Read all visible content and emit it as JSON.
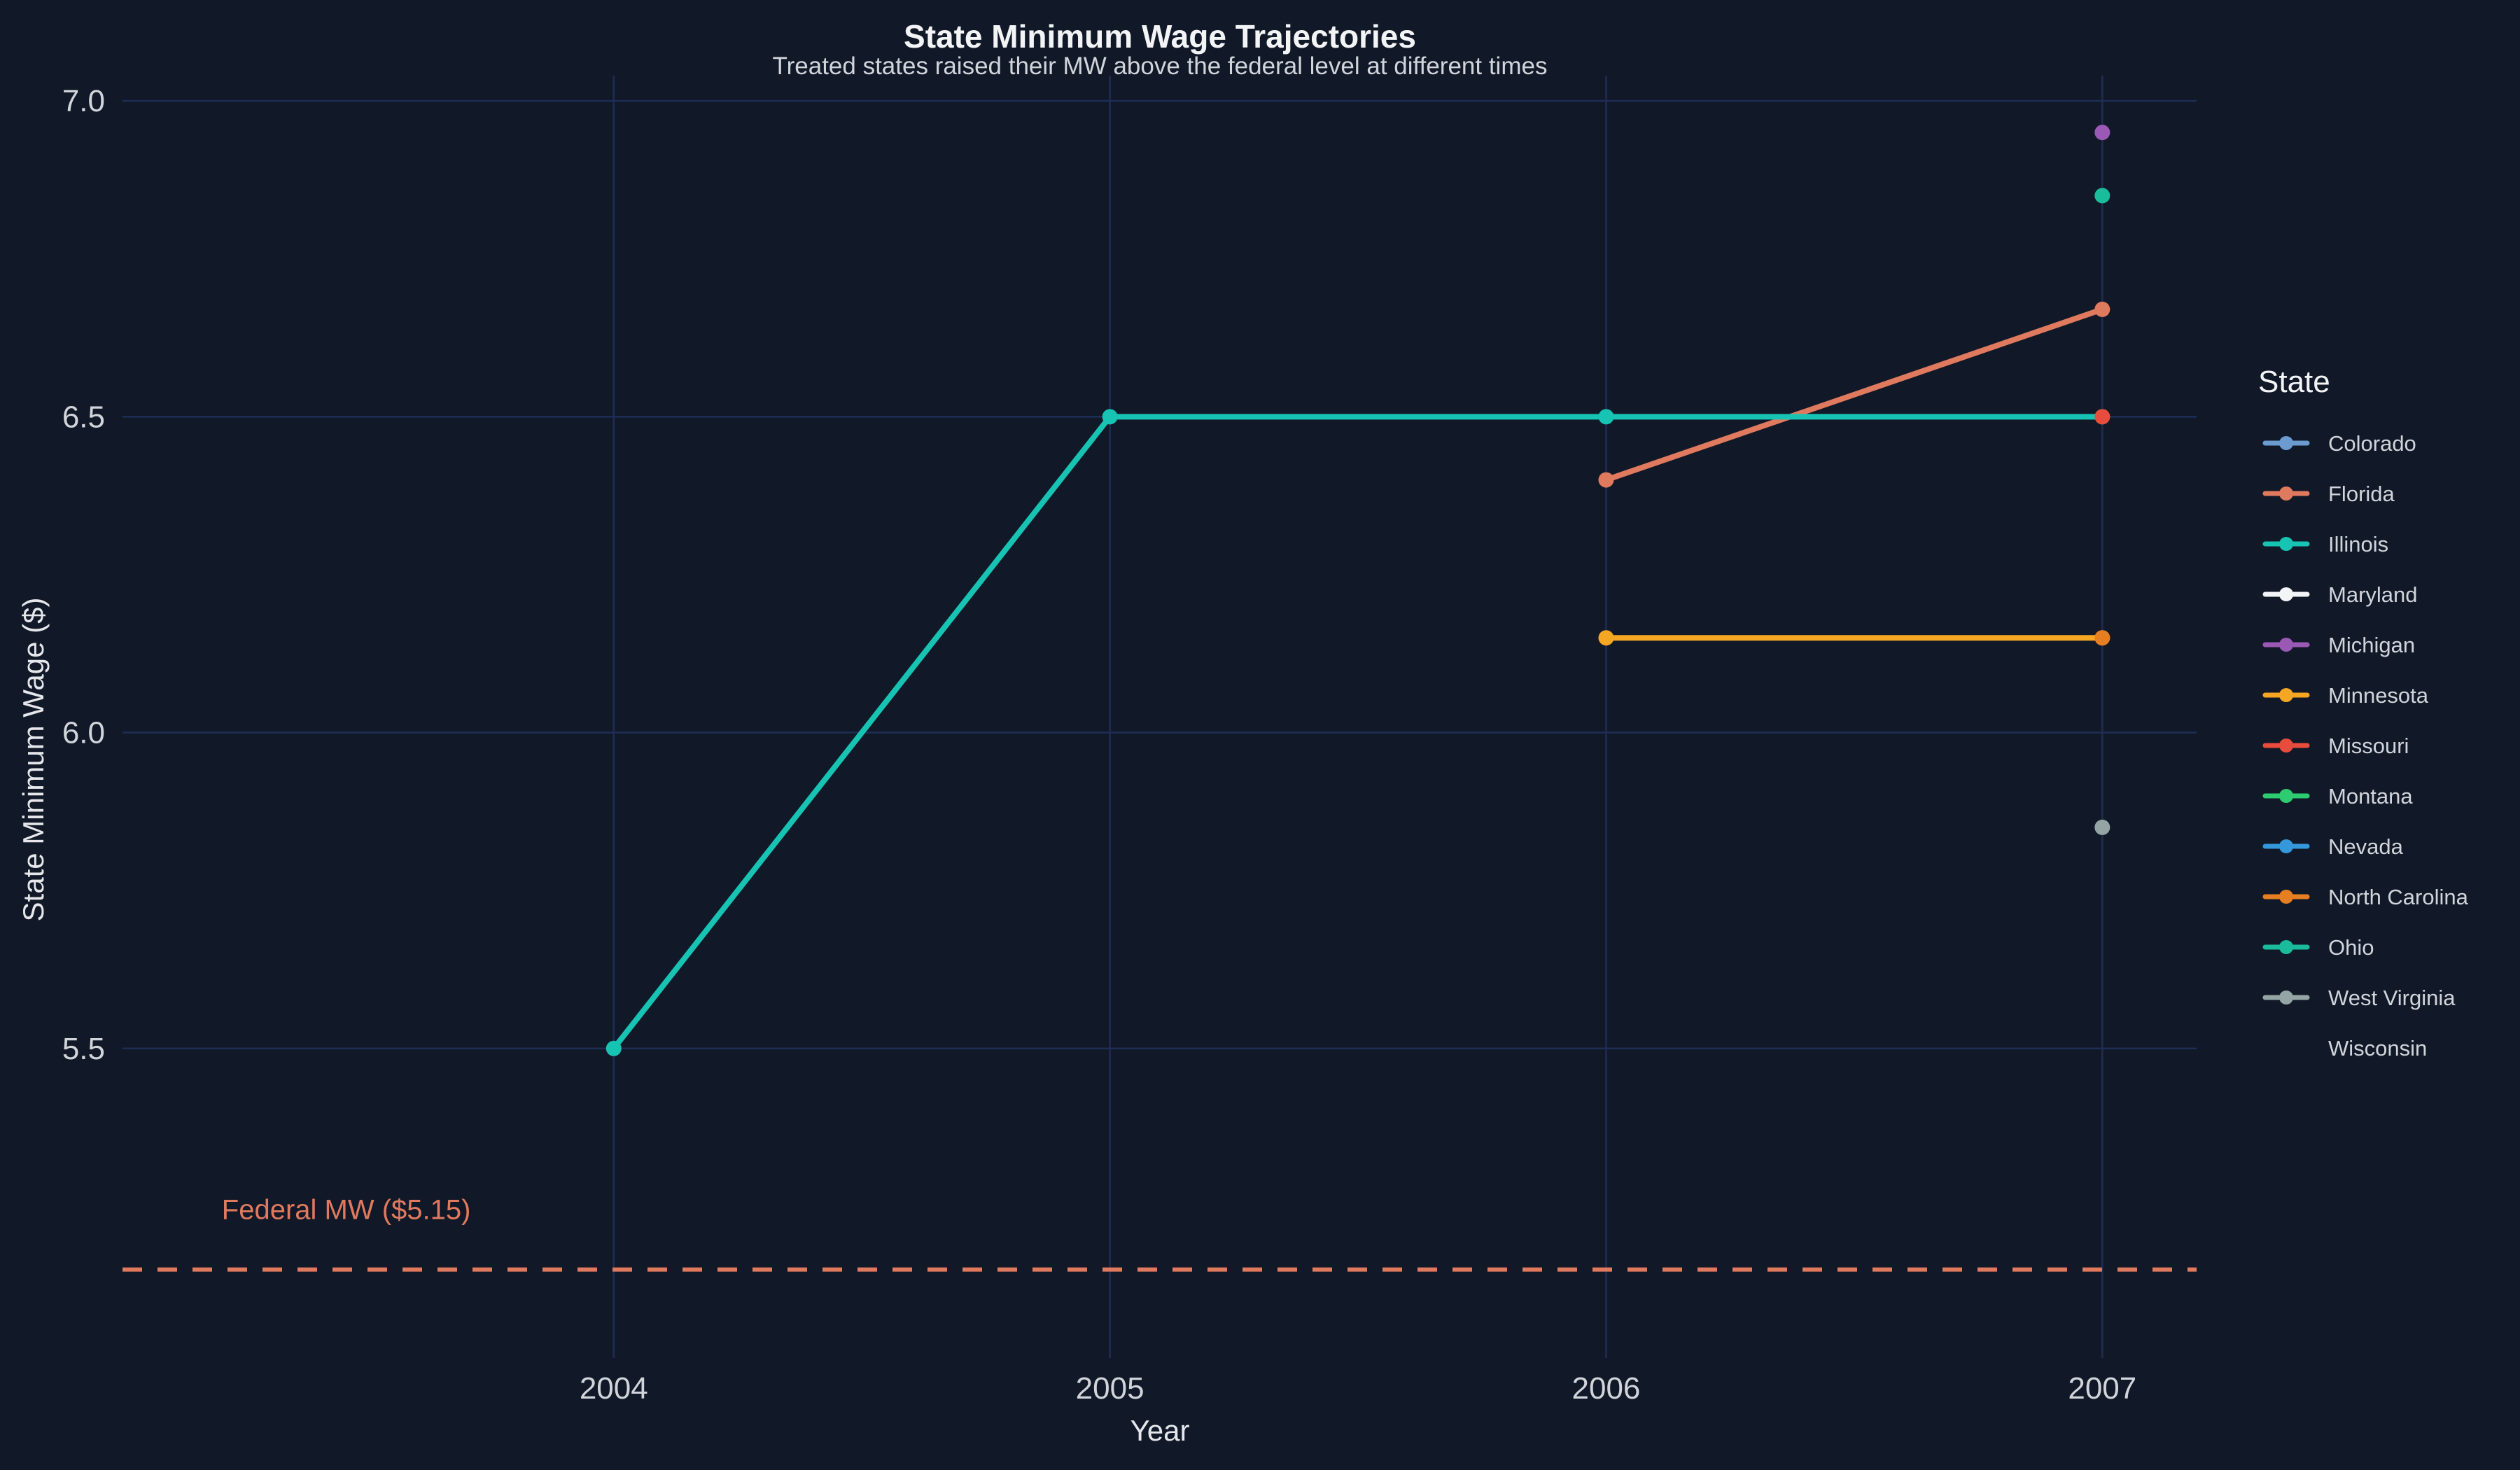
{
  "chart_data": {
    "type": "line",
    "title": "State Minimum Wage Trajectories",
    "subtitle": "Treated states raised their MW above the federal level at different times",
    "xlabel": "Year",
    "ylabel": "State Minimum Wage ($)",
    "x_ticks": [
      2004,
      2005,
      2006,
      2007
    ],
    "y_ticks": [
      5.5,
      6.0,
      6.5,
      7.0
    ],
    "y_tick_labels": [
      "5.5",
      "6.0",
      "6.5",
      "7.0"
    ],
    "xlim": [
      2003.01,
      2007.19
    ],
    "ylim": [
      5.01,
      7.04
    ],
    "grid": true,
    "legend_title": "State",
    "legend_position": "right",
    "reference_line": {
      "y": 5.15,
      "label": "Federal MW ($5.15)",
      "color": "#e07a5f",
      "style": "dashed"
    },
    "series": [
      {
        "name": "Colorado",
        "color": "#6c9bd2",
        "points": []
      },
      {
        "name": "Florida",
        "color": "#e07a5f",
        "points": [
          [
            2006,
            6.4
          ],
          [
            2007,
            6.67
          ]
        ]
      },
      {
        "name": "Illinois",
        "color": "#17c3b2",
        "points": [
          [
            2004,
            5.5
          ],
          [
            2005,
            6.5
          ],
          [
            2006,
            6.5
          ],
          [
            2007,
            6.5
          ]
        ]
      },
      {
        "name": "Maryland",
        "color": "#f3f4f6",
        "points": []
      },
      {
        "name": "Michigan",
        "color": "#9b59b6",
        "points": [
          [
            2007,
            6.95
          ]
        ]
      },
      {
        "name": "Minnesota",
        "color": "#f5a623",
        "points": [
          [
            2006,
            6.15
          ],
          [
            2007,
            6.15
          ]
        ]
      },
      {
        "name": "Missouri",
        "color": "#e74c3c",
        "points": [
          [
            2007,
            6.5
          ]
        ]
      },
      {
        "name": "Montana",
        "color": "#2ecc71",
        "points": []
      },
      {
        "name": "Nevada",
        "color": "#3498db",
        "points": []
      },
      {
        "name": "North Carolina",
        "color": "#e67e22",
        "points": [
          [
            2007,
            6.15
          ]
        ]
      },
      {
        "name": "Ohio",
        "color": "#1abc9c",
        "points": [
          [
            2007,
            6.85
          ]
        ]
      },
      {
        "name": "West Virginia",
        "color": "#95a5a6",
        "points": [
          [
            2007,
            5.85
          ]
        ]
      },
      {
        "name": "Wisconsin",
        "color": "",
        "points": []
      }
    ]
  },
  "colors": {
    "background": "#111827",
    "grid": "#1e2d55",
    "text": "#d1d5db"
  }
}
